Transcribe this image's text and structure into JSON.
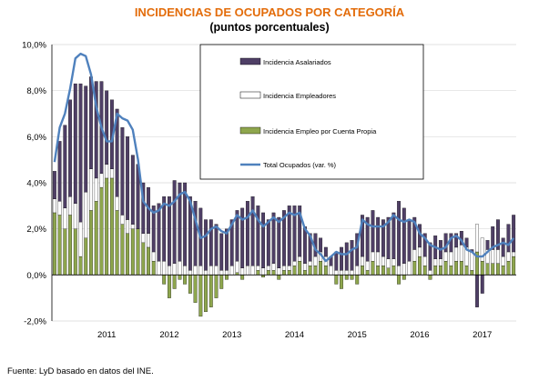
{
  "chart_data": {
    "type": "bar",
    "title": "INCIDENCIAS DE OCUPADOS POR CATEGORÍA",
    "subtitle": "(puntos porcentuales)",
    "source": "Fuente: LyD basado en datos del INE.",
    "ylim": [
      -2.0,
      10.0
    ],
    "yticks": [
      "10,0%",
      "8,0%",
      "6,0%",
      "4,0%",
      "2,0%",
      "0,0%",
      "-2,0%"
    ],
    "ytick_values": [
      10,
      8,
      6,
      4,
      2,
      0,
      -2
    ],
    "xticks": [
      "2011",
      "2012",
      "2013",
      "2014",
      "2015",
      "2016",
      "2017"
    ],
    "xtick_index": [
      10,
      22,
      34,
      46,
      58,
      70,
      82
    ],
    "grid": true,
    "legend_position": "top-right",
    "colors": {
      "asalariados": "#4f3f66",
      "empleadores": "#ffffff",
      "cuenta_propia": "#8ea64d",
      "total": "#4f81bd",
      "title": "#e36c0a"
    },
    "series": [
      {
        "name": "Incidencia Asalariados",
        "values": [
          1.2,
          2.6,
          3.6,
          4.2,
          5.2,
          6.0,
          4.6,
          4.0,
          4.2,
          4.0,
          3.2,
          3.0,
          3.8,
          3.8,
          3.6,
          3.0,
          2.8,
          2.2,
          2.0,
          2.0,
          2.5,
          2.8,
          3.0,
          3.6,
          3.4,
          3.6,
          3.2,
          2.8,
          2.5,
          2.2,
          2.0,
          1.8,
          1.6,
          1.8,
          2.0,
          2.2,
          2.6,
          2.8,
          3.0,
          2.6,
          2.4,
          2.0,
          2.2,
          2.2,
          2.4,
          2.6,
          2.4,
          2.2,
          1.6,
          1.2,
          1.0,
          0.6,
          0.4,
          0.4,
          0.8,
          1.0,
          1.2,
          1.3,
          1.4,
          1.8,
          1.9,
          1.8,
          1.5,
          1.6,
          1.8,
          2.0,
          2.8,
          2.4,
          1.8,
          1.4,
          1.0,
          1.0,
          1.2,
          1.0,
          0.8,
          0.8,
          0.8,
          0.6,
          0.6,
          0.4,
          0.1,
          -1.4,
          -0.8,
          0.4,
          1.0,
          1.3,
          0.8,
          1.2,
          1.6
        ]
      },
      {
        "name": "Incidencia Empleadores",
        "values": [
          0.6,
          0.6,
          0.9,
          0.8,
          1.1,
          1.5,
          2.0,
          1.8,
          1.0,
          0.6,
          0.6,
          0.4,
          0.6,
          0.4,
          0.6,
          0.2,
          0.0,
          0.4,
          0.6,
          0.4,
          0.6,
          0.6,
          0.4,
          0.5,
          0.6,
          0.4,
          0.2,
          0.4,
          0.4,
          0.2,
          0.4,
          0.4,
          0.2,
          0.2,
          0.4,
          0.5,
          0.3,
          0.4,
          0.4,
          0.2,
          0.3,
          0.2,
          0.3,
          0.3,
          0.2,
          0.2,
          0.2,
          0.2,
          0.3,
          0.2,
          0.4,
          0.4,
          0.4,
          0.4,
          0.2,
          0.2,
          0.2,
          0.2,
          0.4,
          0.4,
          0.4,
          0.4,
          0.6,
          0.4,
          0.4,
          0.3,
          0.4,
          0.5,
          0.6,
          0.5,
          0.4,
          0.4,
          0.2,
          0.3,
          0.3,
          0.4,
          0.6,
          0.6,
          0.7,
          0.8,
          0.8,
          1.2,
          1.0,
          0.6,
          0.6,
          0.6,
          0.4,
          0.4,
          0.2
        ]
      },
      {
        "name": "Incidencia Empleo por Cuenta Propia",
        "values": [
          2.7,
          2.6,
          2.0,
          2.6,
          2.0,
          0.8,
          1.6,
          2.8,
          3.2,
          3.8,
          4.2,
          4.2,
          2.8,
          2.2,
          1.8,
          2.0,
          2.0,
          1.4,
          1.2,
          0.6,
          0.0,
          -0.4,
          -1.0,
          -0.6,
          -0.2,
          -0.4,
          -0.8,
          -1.2,
          -1.8,
          -1.6,
          -1.4,
          -1.0,
          -0.6,
          -0.2,
          0.0,
          0.1,
          -0.2,
          0.0,
          0.0,
          0.2,
          -0.1,
          0.2,
          0.2,
          -0.2,
          0.2,
          0.2,
          0.4,
          0.6,
          0.2,
          0.4,
          0.4,
          0.6,
          0.4,
          0.0,
          -0.4,
          -0.6,
          -0.2,
          -0.2,
          -0.4,
          0.4,
          0.2,
          0.6,
          0.4,
          0.4,
          0.3,
          0.4,
          -0.4,
          -0.2,
          0.0,
          0.6,
          0.8,
          0.4,
          -0.2,
          0.4,
          0.4,
          0.6,
          0.4,
          0.6,
          0.6,
          0.4,
          0.2,
          1.0,
          0.6,
          0.5,
          0.5,
          0.5,
          0.4,
          0.6,
          0.8
        ]
      },
      {
        "name": "Total Ocupados (var. %)",
        "values": [
          4.9,
          6.4,
          7.0,
          8.1,
          9.4,
          9.6,
          9.5,
          8.7,
          7.3,
          6.4,
          5.8,
          5.8,
          7.0,
          6.8,
          6.7,
          6.3,
          5.0,
          3.2,
          2.9,
          2.7,
          2.8,
          3.1,
          3.0,
          3.2,
          3.5,
          3.6,
          3.2,
          2.4,
          1.6,
          1.7,
          2.0,
          2.1,
          1.9,
          1.8,
          2.2,
          2.6,
          2.4,
          2.5,
          2.8,
          2.4,
          2.1,
          2.3,
          2.5,
          2.3,
          2.5,
          2.7,
          2.6,
          2.7,
          2.0,
          1.7,
          1.1,
          0.9,
          0.6,
          0.8,
          1.0,
          0.9,
          0.9,
          1.1,
          1.2,
          2.4,
          2.2,
          2.1,
          2.1,
          2.1,
          2.3,
          2.6,
          2.4,
          2.3,
          2.4,
          2.3,
          1.8,
          1.6,
          1.3,
          1.2,
          1.1,
          1.2,
          1.6,
          1.7,
          1.5,
          1.1,
          1.0,
          0.8,
          0.8,
          1.0,
          1.2,
          1.3,
          1.4,
          1.3,
          1.6
        ]
      }
    ]
  }
}
